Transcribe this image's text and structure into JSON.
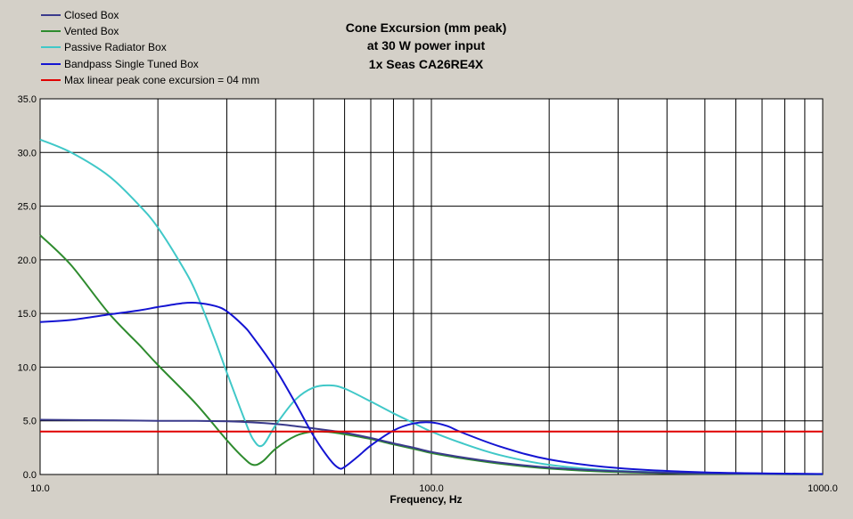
{
  "colors": {
    "background": "#d4d0c8",
    "plot_background": "#ffffff",
    "grid": "#000000",
    "closed_box": "#3a3a8c",
    "vented_box": "#2e8b2e",
    "passive_radiator_box": "#40c8c8",
    "bandpass_single_tuned_box": "#1414d2",
    "max_linear": "#e00000"
  },
  "chart_data": {
    "type": "line",
    "title": [
      "Cone Excursion (mm peak)",
      "at 30 W power input",
      "1x Seas CA26RE4X"
    ],
    "xlabel": "Frequency, Hz",
    "ylabel": "",
    "x_scale": "log",
    "xlim": [
      10,
      1000
    ],
    "ylim": [
      0,
      35
    ],
    "grid": true,
    "legend_position": "top-left",
    "x_ticks": [
      "10.0",
      "100.0",
      "1000.0"
    ],
    "y_ticks": [
      "0.0",
      "5.0",
      "10.0",
      "15.0",
      "20.0",
      "25.0",
      "30.0",
      "35.0"
    ],
    "series": [
      {
        "name": "Closed Box",
        "color_key": "closed_box",
        "x": [
          10,
          15,
          20,
          25,
          30,
          35,
          40,
          45,
          50,
          55,
          60,
          70,
          80,
          90,
          100,
          120,
          150,
          200,
          300,
          500,
          1000
        ],
        "y": [
          5.1,
          5.05,
          5.0,
          5.0,
          4.95,
          4.85,
          4.7,
          4.5,
          4.3,
          4.1,
          3.9,
          3.4,
          2.9,
          2.5,
          2.1,
          1.6,
          1.1,
          0.65,
          0.3,
          0.1,
          0.03
        ]
      },
      {
        "name": "Vented Box",
        "color_key": "vented_box",
        "x": [
          10,
          12,
          15,
          18,
          20,
          25,
          30,
          33,
          35,
          37,
          40,
          45,
          50,
          55,
          60,
          70,
          80,
          90,
          100,
          120,
          150,
          200,
          300,
          500,
          1000
        ],
        "y": [
          22.3,
          19.5,
          15.0,
          12.0,
          10.2,
          6.6,
          3.2,
          1.6,
          0.9,
          1.2,
          2.4,
          3.6,
          4.0,
          3.95,
          3.75,
          3.3,
          2.8,
          2.4,
          2.0,
          1.5,
          1.0,
          0.55,
          0.22,
          0.07,
          0.02
        ]
      },
      {
        "name": "Passive Radiator Box",
        "color_key": "passive_radiator_box",
        "x": [
          10,
          12,
          15,
          18,
          20,
          23,
          25,
          28,
          30,
          33,
          35,
          37,
          40,
          45,
          50,
          55,
          60,
          70,
          80,
          90,
          100,
          120,
          150,
          200,
          300,
          500,
          1000
        ],
        "y": [
          31.2,
          30.0,
          27.8,
          25.0,
          23.0,
          19.5,
          17.0,
          12.5,
          9.5,
          5.5,
          3.3,
          2.7,
          4.6,
          7.0,
          8.1,
          8.3,
          8.0,
          6.8,
          5.7,
          4.8,
          4.0,
          2.9,
          1.8,
          0.9,
          0.35,
          0.1,
          0.02
        ]
      },
      {
        "name": "Bandpass Single Tuned Box",
        "color_key": "bandpass_single_tuned_box",
        "x": [
          10,
          12,
          15,
          18,
          20,
          23,
          25,
          28,
          30,
          33,
          35,
          40,
          45,
          50,
          55,
          58,
          60,
          65,
          70,
          80,
          90,
          100,
          110,
          120,
          150,
          200,
          300,
          500,
          1000
        ],
        "y": [
          14.2,
          14.4,
          14.9,
          15.3,
          15.6,
          15.95,
          16.0,
          15.7,
          15.2,
          13.9,
          12.8,
          9.8,
          6.6,
          3.6,
          1.4,
          0.6,
          0.7,
          1.7,
          2.7,
          4.1,
          4.75,
          4.85,
          4.5,
          3.9,
          2.6,
          1.4,
          0.6,
          0.2,
          0.05
        ]
      },
      {
        "name": "Max linear peak cone excursion = 04 mm",
        "color_key": "max_linear",
        "x": [
          10,
          1000
        ],
        "y": [
          4.0,
          4.0
        ]
      }
    ]
  }
}
